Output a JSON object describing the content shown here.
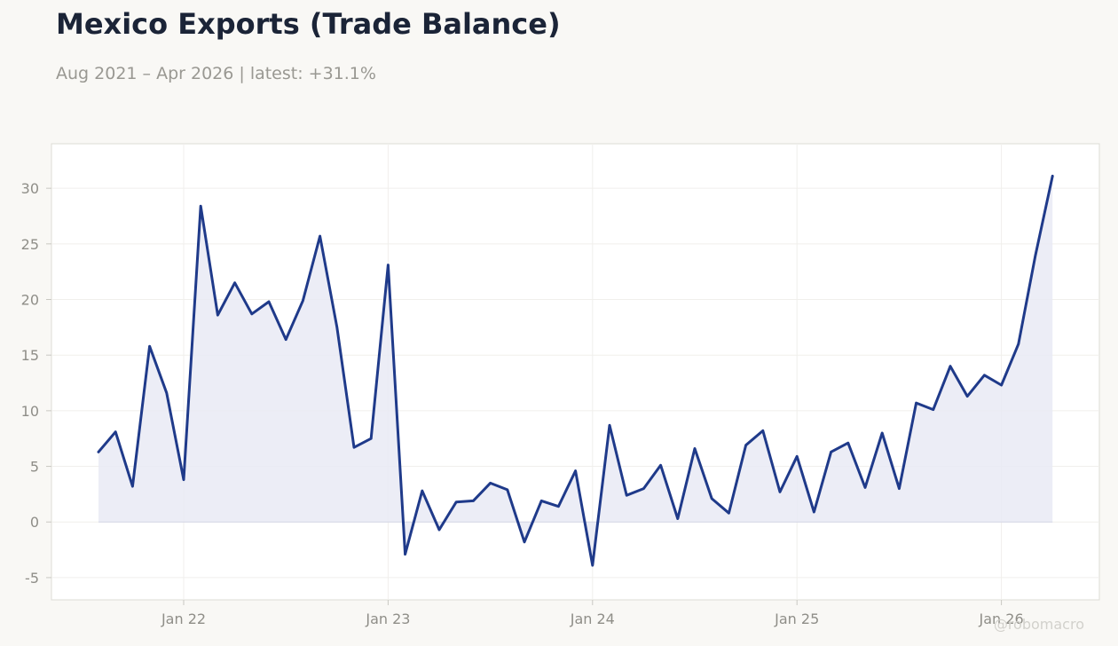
{
  "header": {
    "title": "Mexico Exports (Trade Balance)",
    "subtitle": "Aug 2021 – Apr 2026 | latest: +31.1%"
  },
  "watermark": "@robomacro",
  "colors": {
    "background": "#f9f8f5",
    "plot_background": "#ffffff",
    "line": "#1f3a8a",
    "area_fill": "#e9eaf4",
    "grid": "#f0efec",
    "text_muted": "#8f8e88"
  },
  "chart_data": {
    "type": "area",
    "title": "Mexico Exports (Trade Balance)",
    "subtitle": "Aug 2021 – Apr 2026 | latest: +31.1%",
    "xlabel": "",
    "ylabel": "",
    "x_start": "2021-08",
    "x_end": "2026-04",
    "x_ticks": [
      {
        "label": "Jan 22",
        "date": "2022-01"
      },
      {
        "label": "Jan 23",
        "date": "2023-01"
      },
      {
        "label": "Jan 24",
        "date": "2024-01"
      },
      {
        "label": "Jan 25",
        "date": "2025-01"
      },
      {
        "label": "Jan 26",
        "date": "2026-01"
      }
    ],
    "y_ticks": [
      -5,
      0,
      5,
      10,
      15,
      20,
      25,
      30
    ],
    "ylim": [
      -7,
      34
    ],
    "grid": true,
    "legend": "none",
    "series": [
      {
        "x": [
          "2021-08",
          "2021-09",
          "2021-10",
          "2021-11",
          "2021-12",
          "2022-01",
          "2022-02",
          "2022-03",
          "2022-04",
          "2022-05",
          "2022-06",
          "2022-07",
          "2022-08",
          "2022-09",
          "2022-10",
          "2022-11",
          "2022-12",
          "2023-01",
          "2023-02",
          "2023-03",
          "2023-04",
          "2023-05",
          "2023-06",
          "2023-07",
          "2023-08",
          "2023-09",
          "2023-10",
          "2023-11",
          "2023-12",
          "2024-01",
          "2024-02",
          "2024-03",
          "2024-04",
          "2024-05",
          "2024-06",
          "2024-07",
          "2024-08",
          "2024-09",
          "2024-10",
          "2024-11",
          "2024-12",
          "2025-01",
          "2025-02",
          "2025-03",
          "2025-04",
          "2025-05",
          "2025-06",
          "2025-07",
          "2025-08",
          "2025-09",
          "2025-10",
          "2025-11",
          "2025-12",
          "2026-01",
          "2026-02",
          "2026-03",
          "2026-04"
        ],
        "values": [
          6.3,
          8.1,
          3.2,
          15.8,
          11.6,
          3.8,
          28.4,
          18.6,
          21.5,
          18.7,
          19.8,
          16.4,
          19.9,
          25.7,
          17.5,
          6.7,
          7.5,
          23.1,
          -2.9,
          2.8,
          -0.7,
          1.8,
          1.9,
          3.5,
          2.9,
          -1.8,
          1.9,
          1.4,
          4.6,
          -3.9,
          8.7,
          2.4,
          3.0,
          5.1,
          0.3,
          6.6,
          2.1,
          0.8,
          6.9,
          8.2,
          2.7,
          5.9,
          0.9,
          6.3,
          7.1,
          3.1,
          8.0,
          3.0,
          10.7,
          10.1,
          14.0,
          11.3,
          13.2,
          12.3,
          16.0,
          24.0,
          31.1
        ]
      }
    ]
  }
}
